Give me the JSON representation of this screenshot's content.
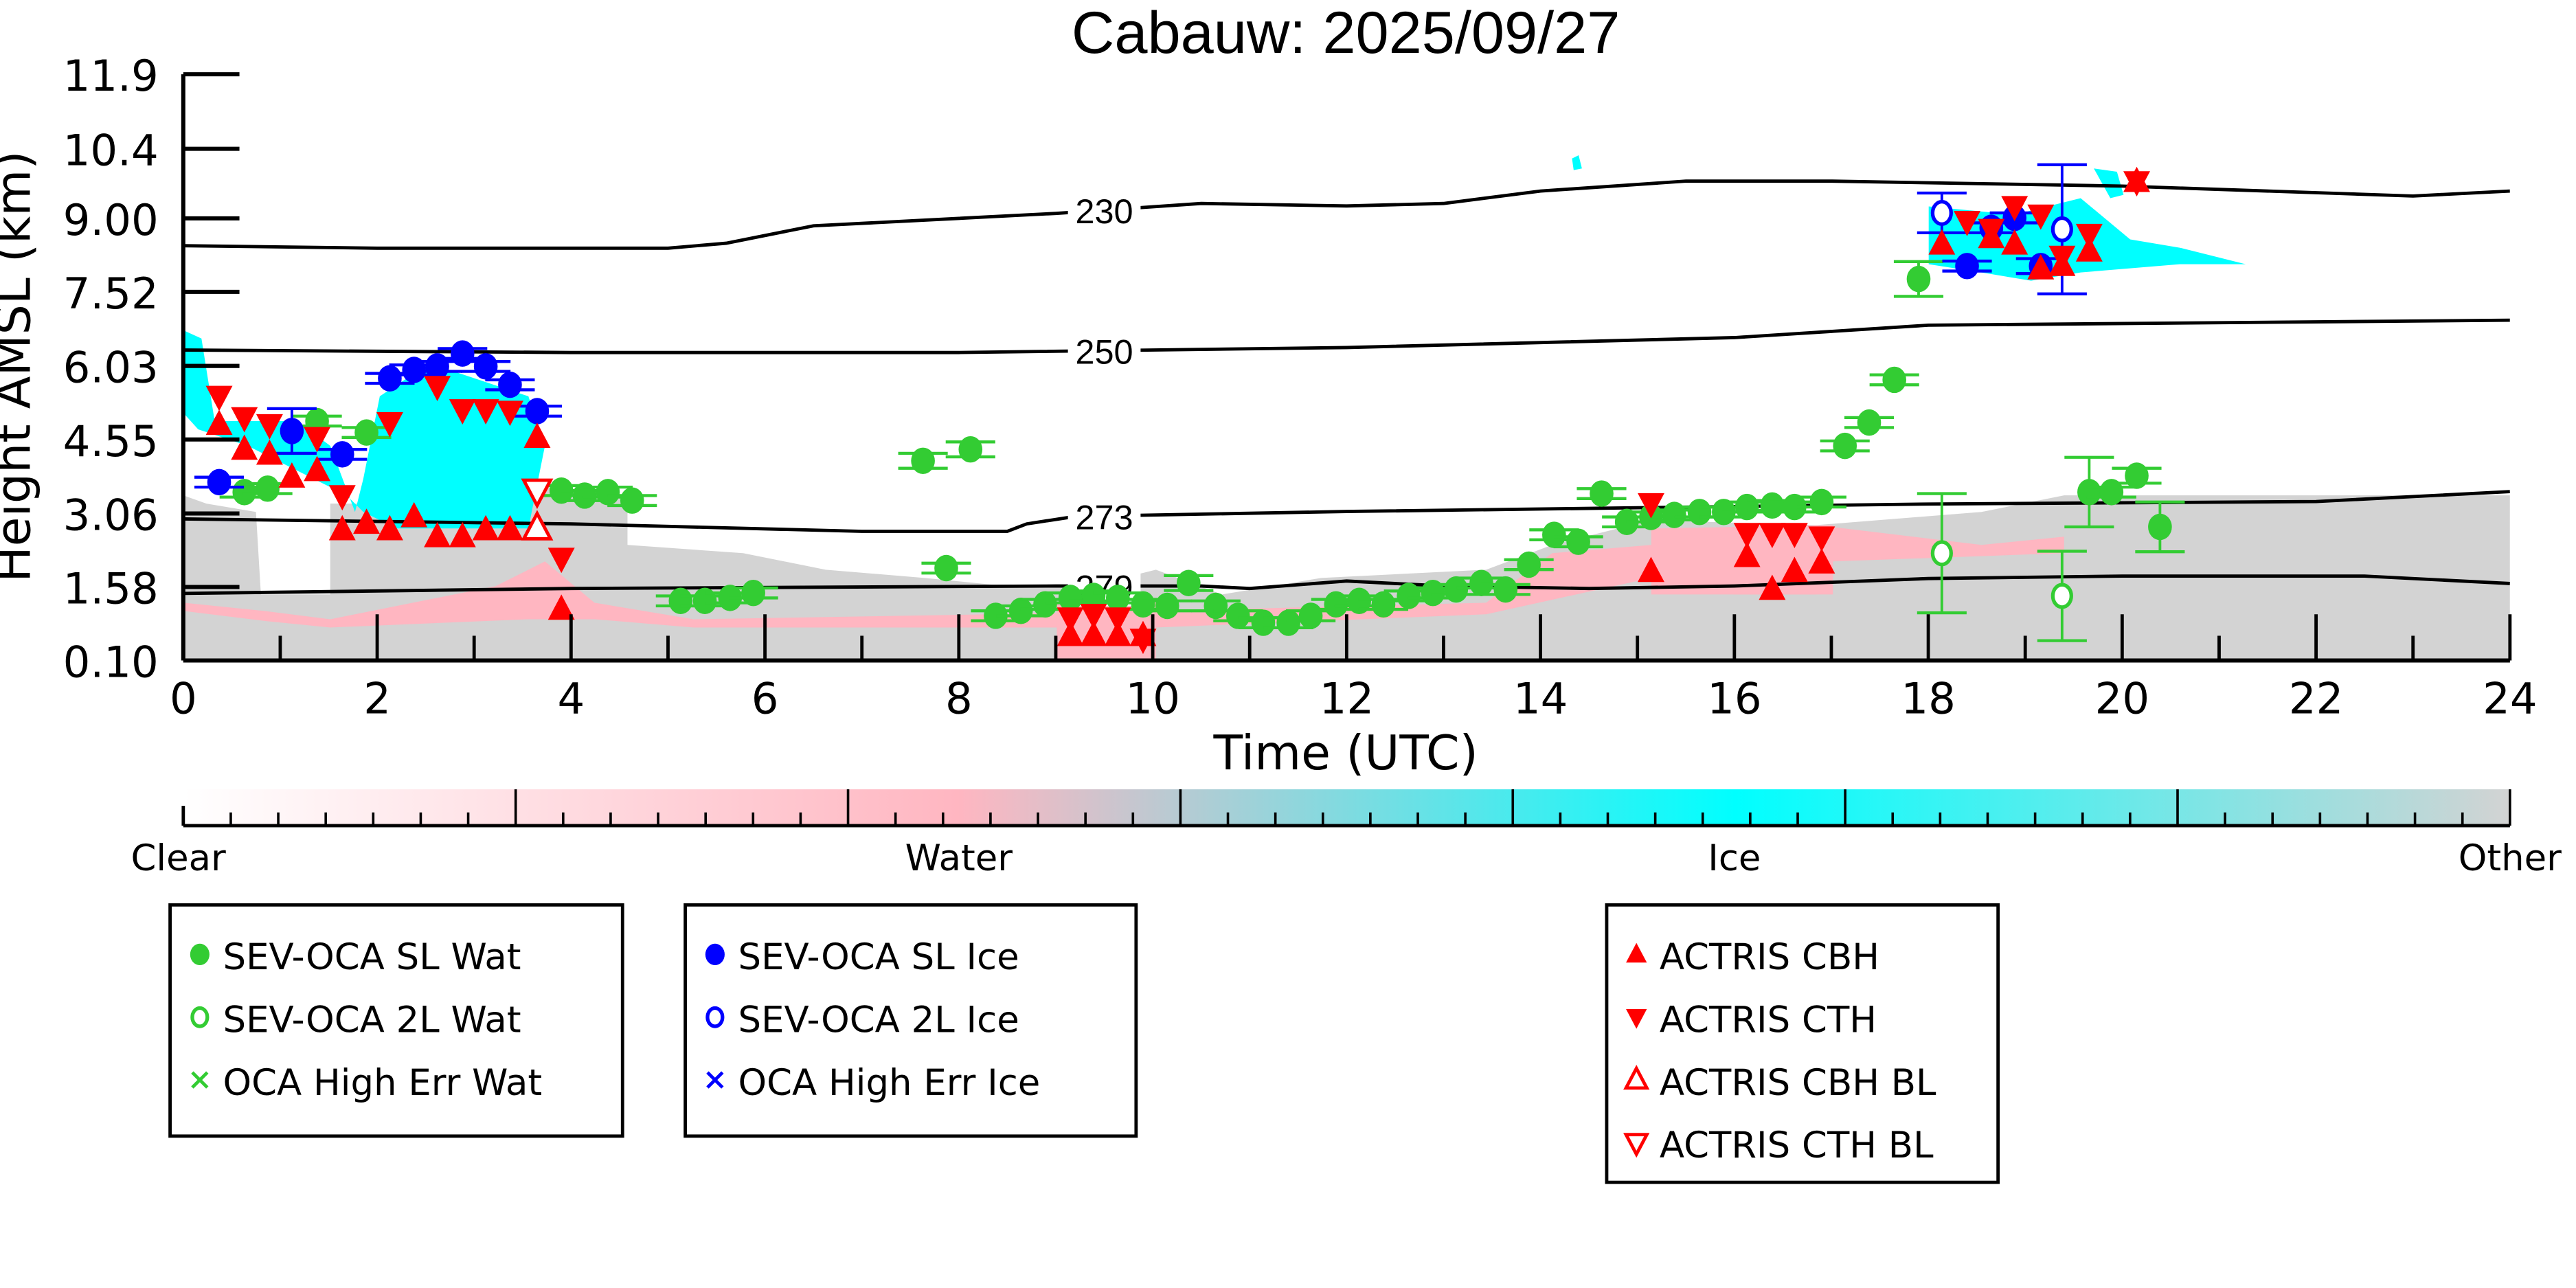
{
  "chart_data": {
    "type": "scatter",
    "title": "Cabauw: 2025/09/27",
    "xlabel": "Time (UTC)",
    "ylabel": "Height AMSL (km)",
    "xlim": [
      0,
      24
    ],
    "ylim": [
      0.1,
      11.9
    ],
    "xticks": [
      "0",
      "2",
      "4",
      "6",
      "8",
      "10",
      "12",
      "14",
      "16",
      "18",
      "20",
      "22",
      "24"
    ],
    "yticks": [
      "0.10",
      "1.58",
      "3.06",
      "4.55",
      "6.03",
      "7.52",
      "9.00",
      "10.4",
      "11.9"
    ],
    "colorbar": {
      "labels": [
        "Clear",
        "Water",
        "Ice",
        "Other"
      ],
      "colors": [
        "#ffffff",
        "#ffb6c1",
        "#00ffff",
        "#d3d3d3"
      ]
    },
    "isotherms": [
      {
        "label": "230",
        "points": [
          [
            0,
            8.45
          ],
          [
            2,
            8.4
          ],
          [
            5,
            8.4
          ],
          [
            5.6,
            8.5
          ],
          [
            6.5,
            8.85
          ],
          [
            9,
            9.1
          ],
          [
            10.5,
            9.3
          ],
          [
            12,
            9.25
          ],
          [
            13,
            9.3
          ],
          [
            14,
            9.55
          ],
          [
            15.5,
            9.75
          ],
          [
            17,
            9.75
          ],
          [
            20,
            9.65
          ],
          [
            23,
            9.45
          ],
          [
            24,
            9.55
          ]
        ]
      },
      {
        "label": "250",
        "points": [
          [
            0,
            6.35
          ],
          [
            4,
            6.3
          ],
          [
            8,
            6.3
          ],
          [
            12,
            6.4
          ],
          [
            16,
            6.6
          ],
          [
            18,
            6.85
          ],
          [
            24,
            6.95
          ]
        ]
      },
      {
        "label": "273",
        "points": [
          [
            0,
            2.95
          ],
          [
            4,
            2.85
          ],
          [
            7,
            2.7
          ],
          [
            8.5,
            2.7
          ],
          [
            8.7,
            2.85
          ],
          [
            9.2,
            3.0
          ],
          [
            12,
            3.1
          ],
          [
            16,
            3.2
          ],
          [
            18,
            3.25
          ],
          [
            22,
            3.3
          ],
          [
            24,
            3.5
          ]
        ]
      },
      {
        "label": "279",
        "points": [
          [
            0,
            1.45
          ],
          [
            4,
            1.55
          ],
          [
            9,
            1.6
          ],
          [
            10.5,
            1.6
          ],
          [
            11,
            1.55
          ],
          [
            12,
            1.7
          ],
          [
            13,
            1.6
          ],
          [
            14.5,
            1.55
          ],
          [
            16,
            1.6
          ],
          [
            18,
            1.75
          ],
          [
            20,
            1.8
          ],
          [
            22.5,
            1.8
          ],
          [
            24,
            1.65
          ]
        ]
      }
    ],
    "series": [
      {
        "name": "SEV-OCA SL Wat",
        "marker": "filled-circle",
        "color": "#33cc33",
        "points": [
          [
            0.63,
            3.49,
            0.1
          ],
          [
            0.87,
            3.56,
            0.1
          ],
          [
            1.38,
            4.92,
            0.1
          ],
          [
            1.89,
            4.69,
            0.1
          ],
          [
            3.9,
            3.52,
            0.1
          ],
          [
            4.14,
            3.42,
            0.1
          ],
          [
            4.38,
            3.49,
            0.1
          ],
          [
            4.63,
            3.32,
            0.1
          ],
          [
            5.13,
            1.3,
            0.1
          ],
          [
            5.38,
            1.3,
            0.1
          ],
          [
            5.64,
            1.36,
            0.1
          ],
          [
            5.88,
            1.46,
            0.1
          ],
          [
            7.63,
            4.12,
            0.15
          ],
          [
            8.12,
            4.35,
            0.15
          ],
          [
            7.87,
            1.96,
            0.1
          ],
          [
            8.38,
            1.0,
            0.1
          ],
          [
            8.64,
            1.1,
            0.1
          ],
          [
            8.89,
            1.23,
            0.1
          ],
          [
            9.15,
            1.36,
            0.1
          ],
          [
            9.39,
            1.4,
            0.1
          ],
          [
            9.64,
            1.36,
            0.1
          ],
          [
            9.9,
            1.23,
            0.1
          ],
          [
            10.15,
            1.2,
            0.1
          ],
          [
            10.37,
            1.66,
            0.15
          ],
          [
            10.65,
            1.2,
            0.1
          ],
          [
            10.88,
            1.0,
            0.1
          ],
          [
            11.14,
            0.86,
            0.1
          ],
          [
            11.4,
            0.86,
            0.1
          ],
          [
            11.63,
            1.0,
            0.1
          ],
          [
            11.89,
            1.23,
            0.1
          ],
          [
            12.13,
            1.3,
            0.1
          ],
          [
            12.38,
            1.23,
            0.1
          ],
          [
            12.64,
            1.4,
            0.1
          ],
          [
            12.89,
            1.46,
            0.1
          ],
          [
            13.13,
            1.53,
            0.1
          ],
          [
            13.39,
            1.66,
            0.1
          ],
          [
            13.64,
            1.53,
            0.1
          ],
          [
            13.88,
            2.03,
            0.1
          ],
          [
            14.14,
            2.63,
            0.1
          ],
          [
            14.39,
            2.49,
            0.1
          ],
          [
            14.63,
            3.46,
            0.1
          ],
          [
            14.89,
            2.89,
            0.1
          ],
          [
            15.14,
            2.99,
            0.1
          ],
          [
            15.38,
            3.03,
            0.1
          ],
          [
            15.64,
            3.09,
            0.1
          ],
          [
            15.89,
            3.09,
            0.1
          ],
          [
            16.13,
            3.19,
            0.1
          ],
          [
            16.39,
            3.22,
            0.1
          ],
          [
            16.62,
            3.19,
            0.1
          ],
          [
            16.9,
            3.29,
            0.1
          ],
          [
            17.14,
            4.42,
            0.1
          ],
          [
            17.39,
            4.89,
            0.1
          ],
          [
            17.65,
            5.75,
            0.1
          ],
          [
            17.9,
            7.78,
            0.35
          ],
          [
            19.66,
            3.49,
            0.7
          ],
          [
            19.89,
            3.49,
            0.1
          ],
          [
            20.15,
            3.82,
            0.15
          ],
          [
            20.39,
            2.79,
            0.5
          ]
        ]
      },
      {
        "name": "SEV-OCA 2L Wat",
        "marker": "open-circle",
        "color": "#33cc33",
        "points": [
          [
            18.14,
            2.26,
            1.2
          ],
          [
            19.38,
            1.4,
            0.9
          ]
        ]
      },
      {
        "name": "OCA High Err Wat",
        "marker": "x",
        "color": "#33cc33",
        "points": []
      },
      {
        "name": "SEV-OCA SL Ice",
        "marker": "filled-circle",
        "color": "#0000ff",
        "points": [
          [
            0.37,
            3.69,
            0.1
          ],
          [
            1.12,
            4.72,
            0.45
          ],
          [
            1.64,
            4.25,
            0.1
          ],
          [
            2.13,
            5.78,
            0.1
          ],
          [
            2.38,
            5.95,
            0.1
          ],
          [
            2.62,
            6.02,
            0.1
          ],
          [
            2.88,
            6.28,
            0.1
          ],
          [
            3.12,
            6.02,
            0.1
          ],
          [
            3.37,
            5.65,
            0.1
          ],
          [
            3.65,
            5.12,
            0.1
          ],
          [
            18.4,
            8.04,
            0.1
          ],
          [
            18.65,
            8.81,
            0.1
          ],
          [
            18.89,
            9.01,
            0.1
          ],
          [
            19.16,
            8.04,
            0.15
          ]
        ]
      },
      {
        "name": "SEV-OCA 2L Ice",
        "marker": "open-circle",
        "color": "#0000ff",
        "points": [
          [
            18.14,
            9.11,
            0.4
          ],
          [
            19.38,
            8.78,
            1.3
          ]
        ]
      },
      {
        "name": "OCA High Err Ice",
        "marker": "x",
        "color": "#0000ff",
        "points": []
      },
      {
        "name": "ACTRIS CBH",
        "marker": "filled-triangle-up",
        "color": "#ff0000",
        "points": [
          [
            0.37,
            4.85
          ],
          [
            0.63,
            4.35
          ],
          [
            0.89,
            4.25
          ],
          [
            1.12,
            3.79
          ],
          [
            1.38,
            3.92
          ],
          [
            1.64,
            2.73
          ],
          [
            1.89,
            2.86
          ],
          [
            2.13,
            2.73
          ],
          [
            2.38,
            2.99
          ],
          [
            2.62,
            2.59
          ],
          [
            2.88,
            2.59
          ],
          [
            3.12,
            2.73
          ],
          [
            3.37,
            2.73
          ],
          [
            3.65,
            4.59
          ],
          [
            3.9,
            1.13
          ],
          [
            9.15,
            0.6
          ],
          [
            9.39,
            0.6
          ],
          [
            9.64,
            0.6
          ],
          [
            9.9,
            0.6
          ],
          [
            15.14,
            1.89
          ],
          [
            16.13,
            2.19
          ],
          [
            16.39,
            1.53
          ],
          [
            16.62,
            1.89
          ],
          [
            16.9,
            2.06
          ],
          [
            18.14,
            8.48
          ],
          [
            18.65,
            8.61
          ],
          [
            18.89,
            8.48
          ],
          [
            19.16,
            7.98
          ],
          [
            19.38,
            8.05
          ],
          [
            19.66,
            8.34
          ],
          [
            20.15,
            9.74
          ]
        ]
      },
      {
        "name": "ACTRIS CTH",
        "marker": "filled-triangle-down",
        "color": "#ff0000",
        "points": [
          [
            0.37,
            5.42
          ],
          [
            0.63,
            4.99
          ],
          [
            0.89,
            4.85
          ],
          [
            1.38,
            4.59
          ],
          [
            1.64,
            3.42
          ],
          [
            2.13,
            4.89
          ],
          [
            2.62,
            5.62
          ],
          [
            2.88,
            5.15
          ],
          [
            3.12,
            5.15
          ],
          [
            3.37,
            5.12
          ],
          [
            3.9,
            2.16
          ],
          [
            9.15,
            0.96
          ],
          [
            9.39,
            1.03
          ],
          [
            9.64,
            0.96
          ],
          [
            9.9,
            0.53
          ],
          [
            15.14,
            3.26
          ],
          [
            16.13,
            2.66
          ],
          [
            16.39,
            2.66
          ],
          [
            16.62,
            2.66
          ],
          [
            16.9,
            2.59
          ],
          [
            18.4,
            8.94
          ],
          [
            18.65,
            8.78
          ],
          [
            18.89,
            9.24
          ],
          [
            19.16,
            9.07
          ],
          [
            19.38,
            8.24
          ],
          [
            19.66,
            8.68
          ],
          [
            20.15,
            9.74
          ]
        ]
      },
      {
        "name": "ACTRIS CBH BL",
        "marker": "open-triangle-up",
        "color": "#ff0000",
        "points": [
          [
            3.65,
            2.76
          ]
        ]
      },
      {
        "name": "ACTRIS CTH BL",
        "marker": "open-triangle-down",
        "color": "#ff0000",
        "points": [
          [
            3.65,
            3.52
          ]
        ]
      }
    ],
    "legend_groups": [
      [
        0,
        1,
        2
      ],
      [
        3,
        4,
        5
      ],
      [
        6,
        7,
        8,
        9
      ]
    ],
    "legend_placement": "bottom"
  }
}
